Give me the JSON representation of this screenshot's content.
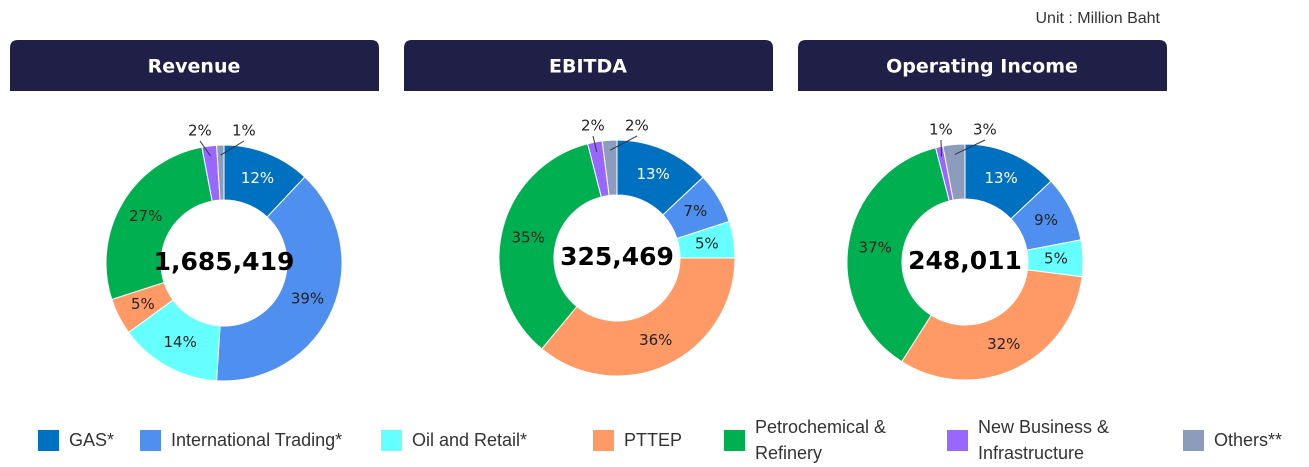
{
  "unit": "Unit : Million Baht",
  "legend": {
    "items": [
      {
        "name": "GAS*",
        "color": "#0070c0"
      },
      {
        "name": "International Trading*",
        "color": "#4f8fef"
      },
      {
        "name": "Oil and Retail*",
        "color": "#66ffff"
      },
      {
        "name": "PTTEP",
        "color": "#ff9966"
      },
      {
        "name": "Petrochemical & Refinery",
        "color": "#00b050"
      },
      {
        "name": "New Business & Infrastructure",
        "color": "#9966ff"
      },
      {
        "name": "Others**",
        "color": "#8c9cbc"
      }
    ]
  },
  "chart_data": [
    {
      "type": "pie",
      "title": "Revenue",
      "total": "1,685,419",
      "values": [
        12,
        39,
        14,
        5,
        27,
        2,
        1
      ],
      "value_labels": [
        "12%",
        "39%",
        "14%",
        "5%",
        "27%",
        "2%",
        "1%"
      ]
    },
    {
      "type": "pie",
      "title": "EBITDA",
      "total": "325,469",
      "values": [
        13,
        7,
        5,
        36,
        35,
        2,
        2
      ],
      "value_labels": [
        "13%",
        "7%",
        "5%",
        "36%",
        "35%",
        "2%",
        "2%"
      ]
    },
    {
      "type": "pie",
      "title": "Operating Income",
      "total": "248,011",
      "values": [
        13,
        9,
        5,
        32,
        37,
        1,
        3
      ],
      "value_labels": [
        "13%",
        "9%",
        "5%",
        "32%",
        "37%",
        "1%",
        "3%"
      ]
    }
  ]
}
